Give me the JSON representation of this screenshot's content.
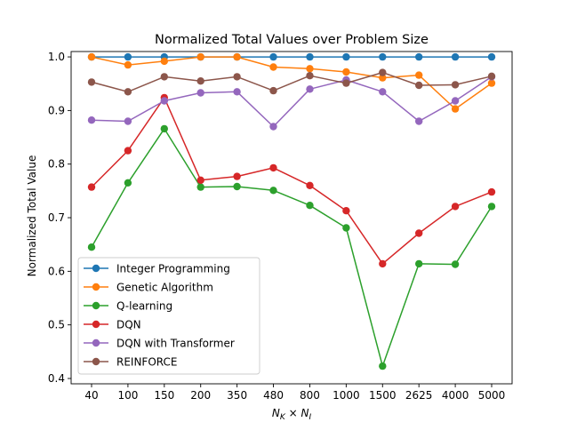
{
  "chart_data": {
    "type": "line",
    "title": "Normalized Total Values over Problem Size",
    "xlabel_main": "N",
    "xlabel_sub1": "K",
    "xlabel_times": " × ",
    "xlabel_sub2": "I",
    "ylabel": "Normalized Total Value",
    "categories": [
      "40",
      "100",
      "150",
      "200",
      "350",
      "480",
      "800",
      "1000",
      "1500",
      "2625",
      "4000",
      "5000"
    ],
    "ylim": [
      0.4,
      1.02
    ],
    "yticks": [
      {
        "value": 0.4,
        "label": "0.4"
      },
      {
        "value": 0.5,
        "label": "0.5"
      },
      {
        "value": 0.6,
        "label": "0.6"
      },
      {
        "value": 0.7,
        "label": "0.7"
      },
      {
        "value": 0.8,
        "label": "0.8"
      },
      {
        "value": 0.9,
        "label": "0.9"
      },
      {
        "value": 1.0,
        "label": "1.0"
      }
    ],
    "grid": false,
    "legend_position": "lower-left",
    "series": [
      {
        "name": "Integer Programming",
        "color": "#1f77b4",
        "values": [
          1.0,
          1.0,
          1.0,
          1.0,
          1.0,
          1.0,
          1.0,
          1.0,
          1.0,
          1.0,
          1.0,
          1.0
        ]
      },
      {
        "name": "Genetic Algorithm",
        "color": "#ff7f0e",
        "values": [
          1.0,
          0.985,
          0.992,
          1.0,
          1.0,
          0.981,
          0.978,
          0.972,
          0.961,
          0.966,
          0.903,
          0.951
        ]
      },
      {
        "name": "Q-learning",
        "color": "#2ca02c",
        "values": [
          0.645,
          0.765,
          0.866,
          0.757,
          0.758,
          0.751,
          0.723,
          0.681,
          0.423,
          0.614,
          0.613,
          0.721
        ]
      },
      {
        "name": "DQN",
        "color": "#d62728",
        "values": [
          0.757,
          0.825,
          0.924,
          0.77,
          0.777,
          0.793,
          0.76,
          0.713,
          0.614,
          0.671,
          0.721,
          0.748
        ]
      },
      {
        "name": "DQN with Transformer",
        "color": "#9467bd",
        "values": [
          0.882,
          0.88,
          0.918,
          0.933,
          0.935,
          0.87,
          0.94,
          0.957,
          0.935,
          0.88,
          0.918,
          0.963
        ]
      },
      {
        "name": "REINFORCE",
        "color": "#8c564b",
        "values": [
          0.953,
          0.935,
          0.963,
          0.955,
          0.963,
          0.937,
          0.965,
          0.951,
          0.971,
          0.947,
          0.948,
          0.964
        ]
      }
    ]
  }
}
